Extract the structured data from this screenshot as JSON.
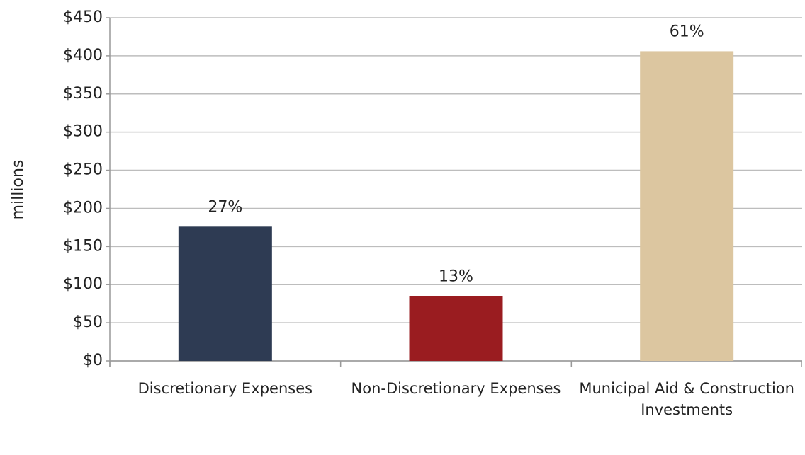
{
  "chart_data": {
    "type": "bar",
    "y_axis_label": "millions",
    "categories": [
      "Discretionary Expenses",
      "Non-Discretionary Expenses",
      "Municipal Aid & Construction Investments"
    ],
    "values": [
      176,
      85,
      406
    ],
    "annotations": [
      "27%",
      "13%",
      "61%"
    ],
    "colors": [
      "#2e3b53",
      "#9a1c20",
      "#dcc6a0"
    ],
    "ylim": [
      0,
      450
    ],
    "yticks": [
      {
        "value": 0,
        "label": "$0"
      },
      {
        "value": 50,
        "label": "$50"
      },
      {
        "value": 100,
        "label": "$100"
      },
      {
        "value": 150,
        "label": "$150"
      },
      {
        "value": 200,
        "label": "$200"
      },
      {
        "value": 250,
        "label": "$250"
      },
      {
        "value": 300,
        "label": "$300"
      },
      {
        "value": 350,
        "label": "$350"
      },
      {
        "value": 400,
        "label": "$400"
      },
      {
        "value": 450,
        "label": "$450"
      }
    ],
    "grid": true
  }
}
